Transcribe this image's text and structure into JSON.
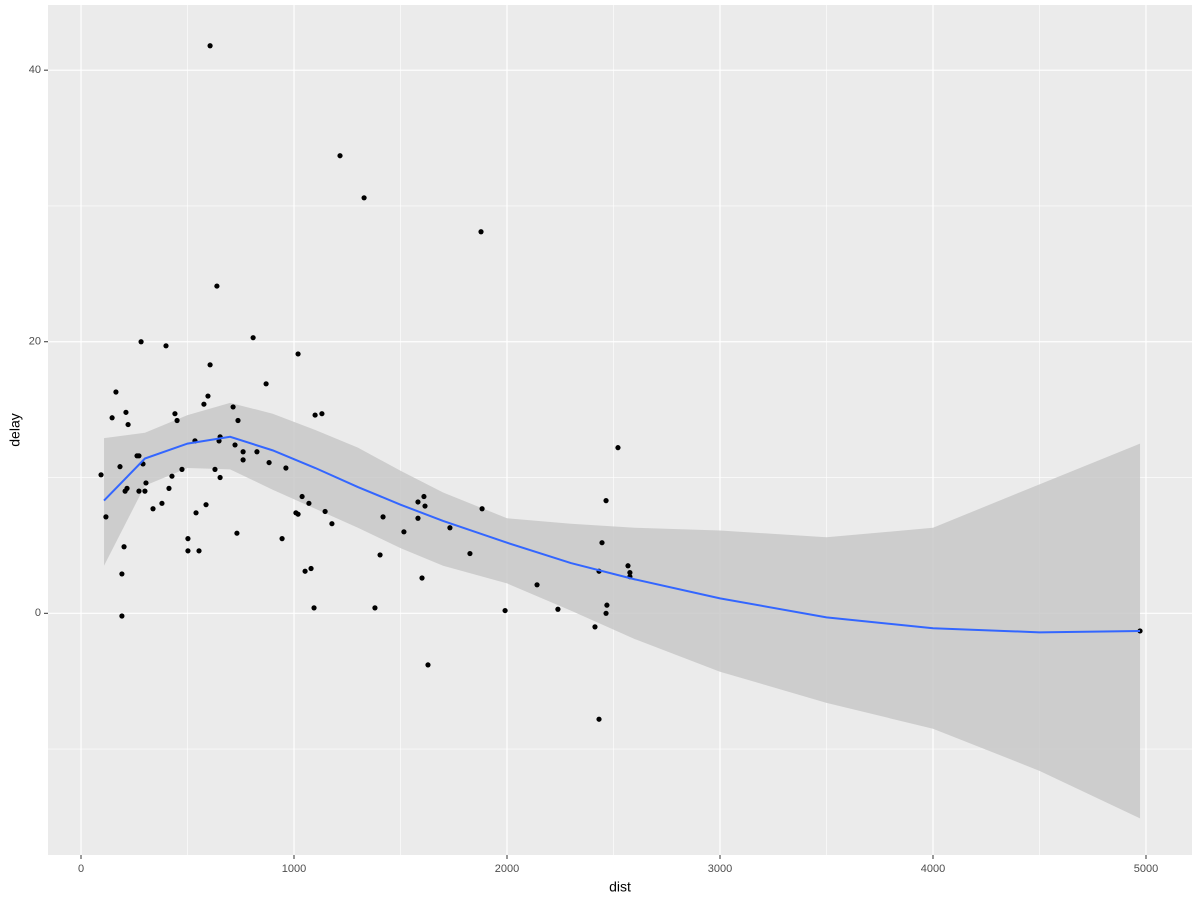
{
  "chart_data": {
    "type": "scatter",
    "x_label": "dist",
    "y_label": "delay",
    "xlim": [
      -155,
      5216
    ],
    "ylim": [
      -17.8,
      44.8
    ],
    "xticks": [
      0,
      1000,
      2000,
      3000,
      4000,
      5000
    ],
    "yticks": [
      0,
      20,
      40
    ],
    "xminor": [
      500,
      1500,
      2500,
      3500,
      4500
    ],
    "yminor": [
      -10,
      10,
      30
    ],
    "grid": true,
    "point_color": "#000000",
    "x": [
      94,
      117,
      164,
      146,
      183,
      192,
      192,
      202,
      207,
      211,
      216,
      221,
      263,
      272,
      272,
      282,
      291,
      300,
      305,
      338,
      380,
      399,
      413,
      427,
      441,
      451,
      474,
      502,
      502,
      535,
      540,
      554,
      577,
      587,
      596,
      606,
      606,
      629,
      638,
      648,
      653,
      653,
      714,
      723,
      732,
      737,
      761,
      761,
      808,
      826,
      869,
      883,
      944,
      962,
      1009,
      1019,
      1019,
      1038,
      1052,
      1070,
      1080,
      1099,
      1094,
      1131,
      1146,
      1178,
      1216,
      1329,
      1380,
      1404,
      1418,
      1516,
      1582,
      1582,
      1601,
      1610,
      1615,
      1629,
      1732,
      1826,
      1878,
      1883,
      1991,
      2141,
      2239,
      2413,
      2432,
      2432,
      2446,
      2465,
      2465,
      2469,
      2521,
      2568,
      2577,
      2577,
      4972
    ],
    "y": [
      10.2,
      7.1,
      16.3,
      14.4,
      10.8,
      -0.2,
      2.9,
      4.9,
      9.0,
      14.8,
      9.2,
      13.9,
      11.6,
      11.6,
      9.0,
      20.0,
      11.0,
      9.0,
      9.6,
      7.7,
      8.1,
      19.7,
      9.2,
      10.1,
      14.7,
      14.2,
      10.6,
      5.5,
      4.6,
      12.7,
      7.4,
      4.6,
      15.4,
      8.0,
      16.0,
      18.3,
      41.8,
      10.6,
      24.1,
      12.7,
      13.0,
      10.0,
      15.2,
      12.4,
      5.9,
      14.2,
      11.9,
      11.3,
      20.3,
      11.9,
      16.9,
      11.1,
      5.5,
      10.7,
      7.4,
      7.3,
      19.1,
      8.6,
      3.1,
      8.1,
      3.3,
      14.6,
      0.4,
      14.7,
      7.5,
      6.6,
      33.7,
      30.6,
      0.4,
      4.3,
      7.1,
      6.0,
      8.2,
      7.0,
      2.6,
      8.6,
      7.9,
      -3.8,
      6.3,
      4.4,
      28.1,
      7.7,
      0.2,
      2.1,
      0.3,
      -1.0,
      3.1,
      -7.8,
      5.2,
      8.3,
      0.0,
      0.6,
      12.2,
      3.5,
      3.0,
      2.7,
      -1.3
    ],
    "smooth": {
      "color": "#3366ff",
      "band_color": "#c8c8c8",
      "x": [
        108,
        300,
        500,
        700,
        900,
        1100,
        1300,
        1500,
        1700,
        2000,
        2300,
        2600,
        3000,
        3500,
        4000,
        4500,
        4972
      ],
      "y": [
        8.3,
        11.4,
        12.5,
        13.0,
        12.0,
        10.7,
        9.3,
        8.0,
        6.8,
        5.2,
        3.7,
        2.5,
        1.1,
        -0.3,
        -1.1,
        -1.4,
        -1.3
      ],
      "lower": [
        3.5,
        9.4,
        10.7,
        10.6,
        9.1,
        7.7,
        6.3,
        4.8,
        3.5,
        2.2,
        0.2,
        -1.9,
        -4.3,
        -6.6,
        -8.5,
        -11.6,
        -15.1
      ],
      "upper": [
        12.9,
        13.3,
        14.6,
        15.5,
        14.7,
        13.5,
        12.2,
        10.5,
        8.9,
        7.0,
        6.6,
        6.3,
        6.1,
        5.6,
        6.3,
        9.5,
        12.5
      ]
    }
  }
}
